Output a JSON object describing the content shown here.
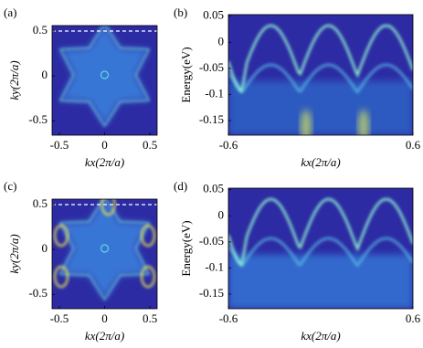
{
  "chart_data": [
    {
      "type": "heatmap",
      "panel_label": "(a)",
      "xlabel": "kx(2π/a)",
      "ylabel": "ky(2π/a)",
      "xlim": [
        -0.58,
        0.58
      ],
      "ylim": [
        -0.66,
        0.56
      ],
      "xticks": [
        -0.5,
        0,
        0.5
      ],
      "yticks": [
        -0.5,
        0,
        0.5
      ]
    },
    {
      "type": "heatmap",
      "panel_label": "(b)",
      "xlabel": "kx(2π/a)",
      "ylabel": "Energy(eV)",
      "xlim": [
        -0.6,
        0.6
      ],
      "ylim": [
        -0.178,
        0.053
      ],
      "xticks": [
        -0.6,
        0.6
      ],
      "yticks": [
        -0.15,
        -0.1,
        -0.05,
        0,
        0.05
      ]
    },
    {
      "type": "heatmap",
      "panel_label": "(c)",
      "xlabel": "kx(2π/a)",
      "ylabel": "ky(2π/a)",
      "xlim": [
        -0.58,
        0.58
      ],
      "ylim": [
        -0.66,
        0.56
      ],
      "xticks": [
        -0.5,
        0,
        0.5
      ],
      "yticks": [
        -0.5,
        0,
        0.5
      ]
    },
    {
      "type": "heatmap",
      "panel_label": "(d)",
      "xlabel": "kx(2π/a)",
      "ylabel": "Energy(eV)",
      "xlim": [
        -0.6,
        0.6
      ],
      "ylim": [
        -0.178,
        0.053
      ],
      "xticks": [
        -0.6,
        0.6
      ],
      "yticks": [
        -0.15,
        -0.1,
        -0.05,
        0,
        0.05
      ]
    }
  ]
}
